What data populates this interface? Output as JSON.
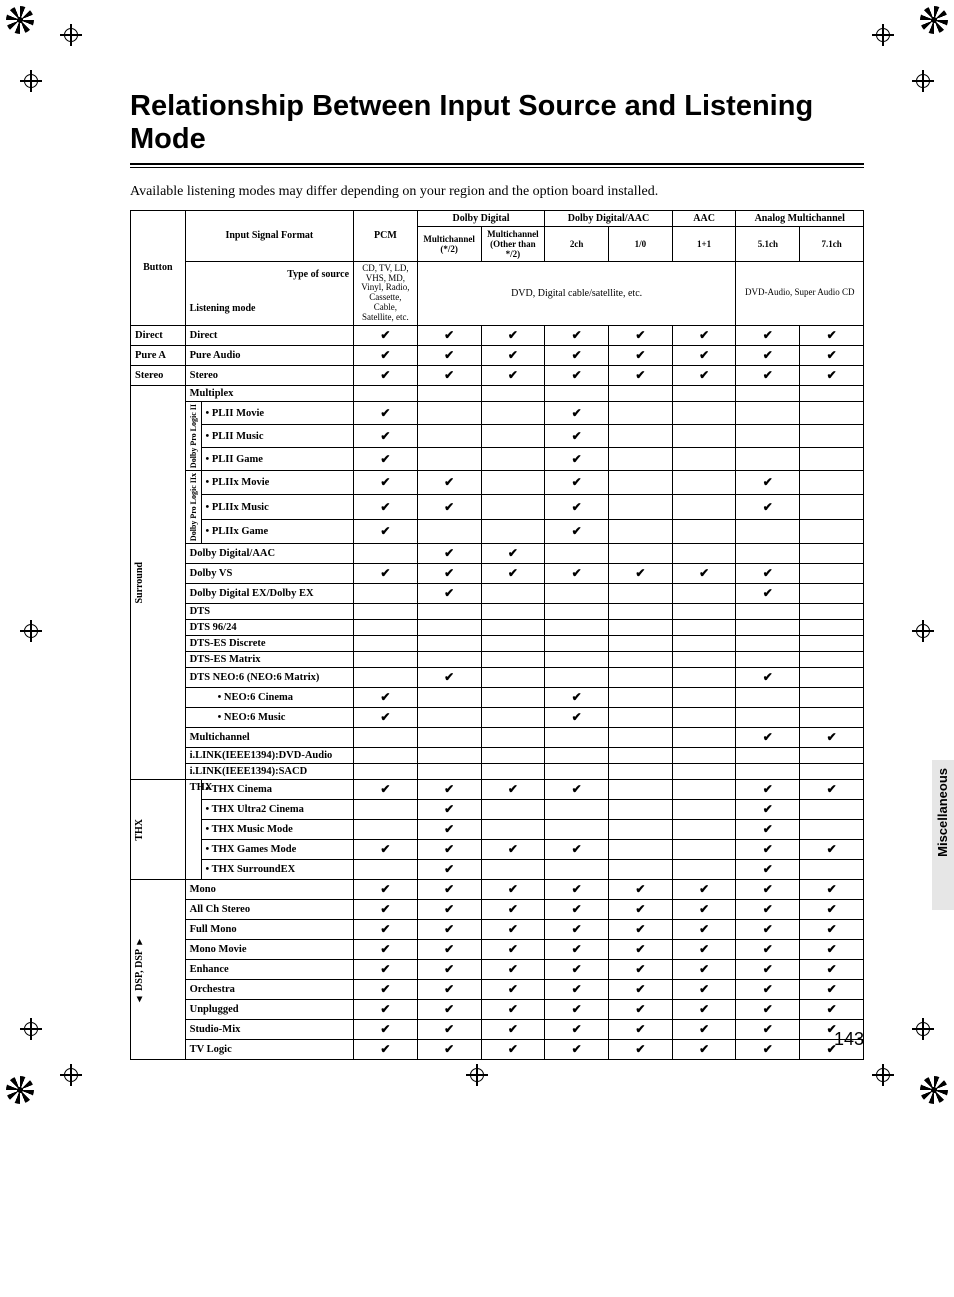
{
  "title": "Relationship Between Input Source and Listening Mode",
  "intro": "Available listening modes may differ depending on your region and the option board installed.",
  "page_number": "143",
  "side_tab": "Miscellaneous",
  "header": {
    "button": "Button",
    "input_signal": "Input Signal Format",
    "pcm": "PCM",
    "dolby_digital": "Dolby Digital",
    "dolby_digital_aac": "Dolby Digital/AAC",
    "aac": "AAC",
    "analog_multi": "Analog Multichannel",
    "multich_star2": "Multichannel (*/2)",
    "multich_other": "Multichannel (Other than */2)",
    "ch2": "2ch",
    "one_zero": "1/0",
    "one_plus_one": "1+1",
    "ch51": "5.1ch",
    "ch71": "7.1ch",
    "type_of_source": "Type of source",
    "listening_mode": "Listening mode",
    "src_pcm": "CD, TV, LD, VHS, MD, Vinyl, Radio, Cassette, Cable, Satellite, etc.",
    "src_dvd": "DVD, Digital cable/satellite, etc.",
    "src_dvda": "DVD-Audio, Super Audio CD"
  },
  "groups": {
    "direct": "Direct",
    "purea": "Pure A",
    "stereo": "Stereo",
    "surround": "Surround",
    "thx": "THX",
    "dsp": "DSP, DSP",
    "plii": "Dolby Pro Logic II",
    "pliix": "Dolby Pro Logic IIx",
    "thx_label": "THX"
  },
  "rows": [
    {
      "button": "Direct",
      "mode": "Direct",
      "c": [
        1,
        1,
        1,
        1,
        1,
        1,
        1,
        1
      ]
    },
    {
      "button": "Pure A",
      "mode": "Pure Audio",
      "c": [
        1,
        1,
        1,
        1,
        1,
        1,
        1,
        1
      ]
    },
    {
      "button": "Stereo",
      "mode": "Stereo",
      "c": [
        1,
        1,
        1,
        1,
        1,
        1,
        1,
        1
      ]
    },
    {
      "mode": "Multiplex",
      "c": [
        0,
        0,
        0,
        0,
        0,
        0,
        0,
        0
      ]
    },
    {
      "sub": "plii",
      "mode": "• PLII Movie",
      "c": [
        1,
        0,
        0,
        1,
        0,
        0,
        0,
        0
      ]
    },
    {
      "sub": "plii",
      "mode": "• PLII Music",
      "c": [
        1,
        0,
        0,
        1,
        0,
        0,
        0,
        0
      ]
    },
    {
      "sub": "plii",
      "mode": "• PLII Game",
      "c": [
        1,
        0,
        0,
        1,
        0,
        0,
        0,
        0
      ]
    },
    {
      "sub": "pliix",
      "mode": "• PLIIx Movie",
      "c": [
        1,
        1,
        0,
        1,
        0,
        0,
        1,
        0
      ]
    },
    {
      "sub": "pliix",
      "mode": "• PLIIx Music",
      "c": [
        1,
        1,
        0,
        1,
        0,
        0,
        1,
        0
      ]
    },
    {
      "sub": "pliix",
      "mode": "• PLIIx Game",
      "c": [
        1,
        0,
        0,
        1,
        0,
        0,
        0,
        0
      ]
    },
    {
      "mode": "Dolby Digital/AAC",
      "c": [
        0,
        1,
        1,
        0,
        0,
        0,
        0,
        0
      ]
    },
    {
      "mode": "Dolby VS",
      "c": [
        1,
        1,
        1,
        1,
        1,
        1,
        1,
        0
      ]
    },
    {
      "mode": "Dolby Digital EX/Dolby EX",
      "c": [
        0,
        1,
        0,
        0,
        0,
        0,
        1,
        0
      ]
    },
    {
      "mode": "DTS",
      "c": [
        0,
        0,
        0,
        0,
        0,
        0,
        0,
        0
      ]
    },
    {
      "mode": "DTS 96/24",
      "c": [
        0,
        0,
        0,
        0,
        0,
        0,
        0,
        0
      ]
    },
    {
      "mode": "DTS-ES Discrete",
      "c": [
        0,
        0,
        0,
        0,
        0,
        0,
        0,
        0
      ]
    },
    {
      "mode": "DTS-ES Matrix",
      "c": [
        0,
        0,
        0,
        0,
        0,
        0,
        0,
        0
      ]
    },
    {
      "mode": "DTS NEO:6 (NEO:6 Matrix)",
      "c": [
        0,
        1,
        0,
        0,
        0,
        0,
        1,
        0
      ]
    },
    {
      "indent": 1,
      "mode": "• NEO:6 Cinema",
      "c": [
        1,
        0,
        0,
        1,
        0,
        0,
        0,
        0
      ]
    },
    {
      "indent": 1,
      "mode": "• NEO:6 Music",
      "c": [
        1,
        0,
        0,
        1,
        0,
        0,
        0,
        0
      ]
    },
    {
      "mode": "Multichannel",
      "c": [
        0,
        0,
        0,
        0,
        0,
        0,
        1,
        1
      ]
    },
    {
      "mode": "i.LINK(IEEE1394):DVD-Audio",
      "c": [
        0,
        0,
        0,
        0,
        0,
        0,
        0,
        0
      ]
    },
    {
      "mode": "i.LINK(IEEE1394):SACD",
      "c": [
        0,
        0,
        0,
        0,
        0,
        0,
        0,
        0
      ]
    },
    {
      "sub": "thx",
      "mode": "• THX Cinema",
      "c": [
        1,
        1,
        1,
        1,
        0,
        0,
        1,
        1
      ]
    },
    {
      "sub": "thx",
      "mode": "• THX Ultra2 Cinema",
      "c": [
        0,
        1,
        0,
        0,
        0,
        0,
        1,
        0
      ]
    },
    {
      "sub": "thx",
      "mode": "• THX Music Mode",
      "c": [
        0,
        1,
        0,
        0,
        0,
        0,
        1,
        0
      ]
    },
    {
      "sub": "thx",
      "mode": "• THX Games Mode",
      "c": [
        1,
        1,
        1,
        1,
        0,
        0,
        1,
        1
      ]
    },
    {
      "sub": "thx",
      "mode": "• THX SurroundEX",
      "c": [
        0,
        1,
        0,
        0,
        0,
        0,
        1,
        0
      ]
    },
    {
      "mode": "Mono",
      "c": [
        1,
        1,
        1,
        1,
        1,
        1,
        1,
        1
      ]
    },
    {
      "mode": "All Ch Stereo",
      "c": [
        1,
        1,
        1,
        1,
        1,
        1,
        1,
        1
      ]
    },
    {
      "mode": "Full Mono",
      "c": [
        1,
        1,
        1,
        1,
        1,
        1,
        1,
        1
      ]
    },
    {
      "mode": "Mono Movie",
      "c": [
        1,
        1,
        1,
        1,
        1,
        1,
        1,
        1
      ]
    },
    {
      "mode": "Enhance",
      "c": [
        1,
        1,
        1,
        1,
        1,
        1,
        1,
        1
      ]
    },
    {
      "mode": "Orchestra",
      "c": [
        1,
        1,
        1,
        1,
        1,
        1,
        1,
        1
      ]
    },
    {
      "mode": "Unplugged",
      "c": [
        1,
        1,
        1,
        1,
        1,
        1,
        1,
        1
      ]
    },
    {
      "mode": "Studio-Mix",
      "c": [
        1,
        1,
        1,
        1,
        1,
        1,
        1,
        1
      ]
    },
    {
      "mode": "TV Logic",
      "c": [
        1,
        1,
        1,
        1,
        1,
        1,
        1,
        1
      ]
    }
  ],
  "check_glyph": "✔"
}
